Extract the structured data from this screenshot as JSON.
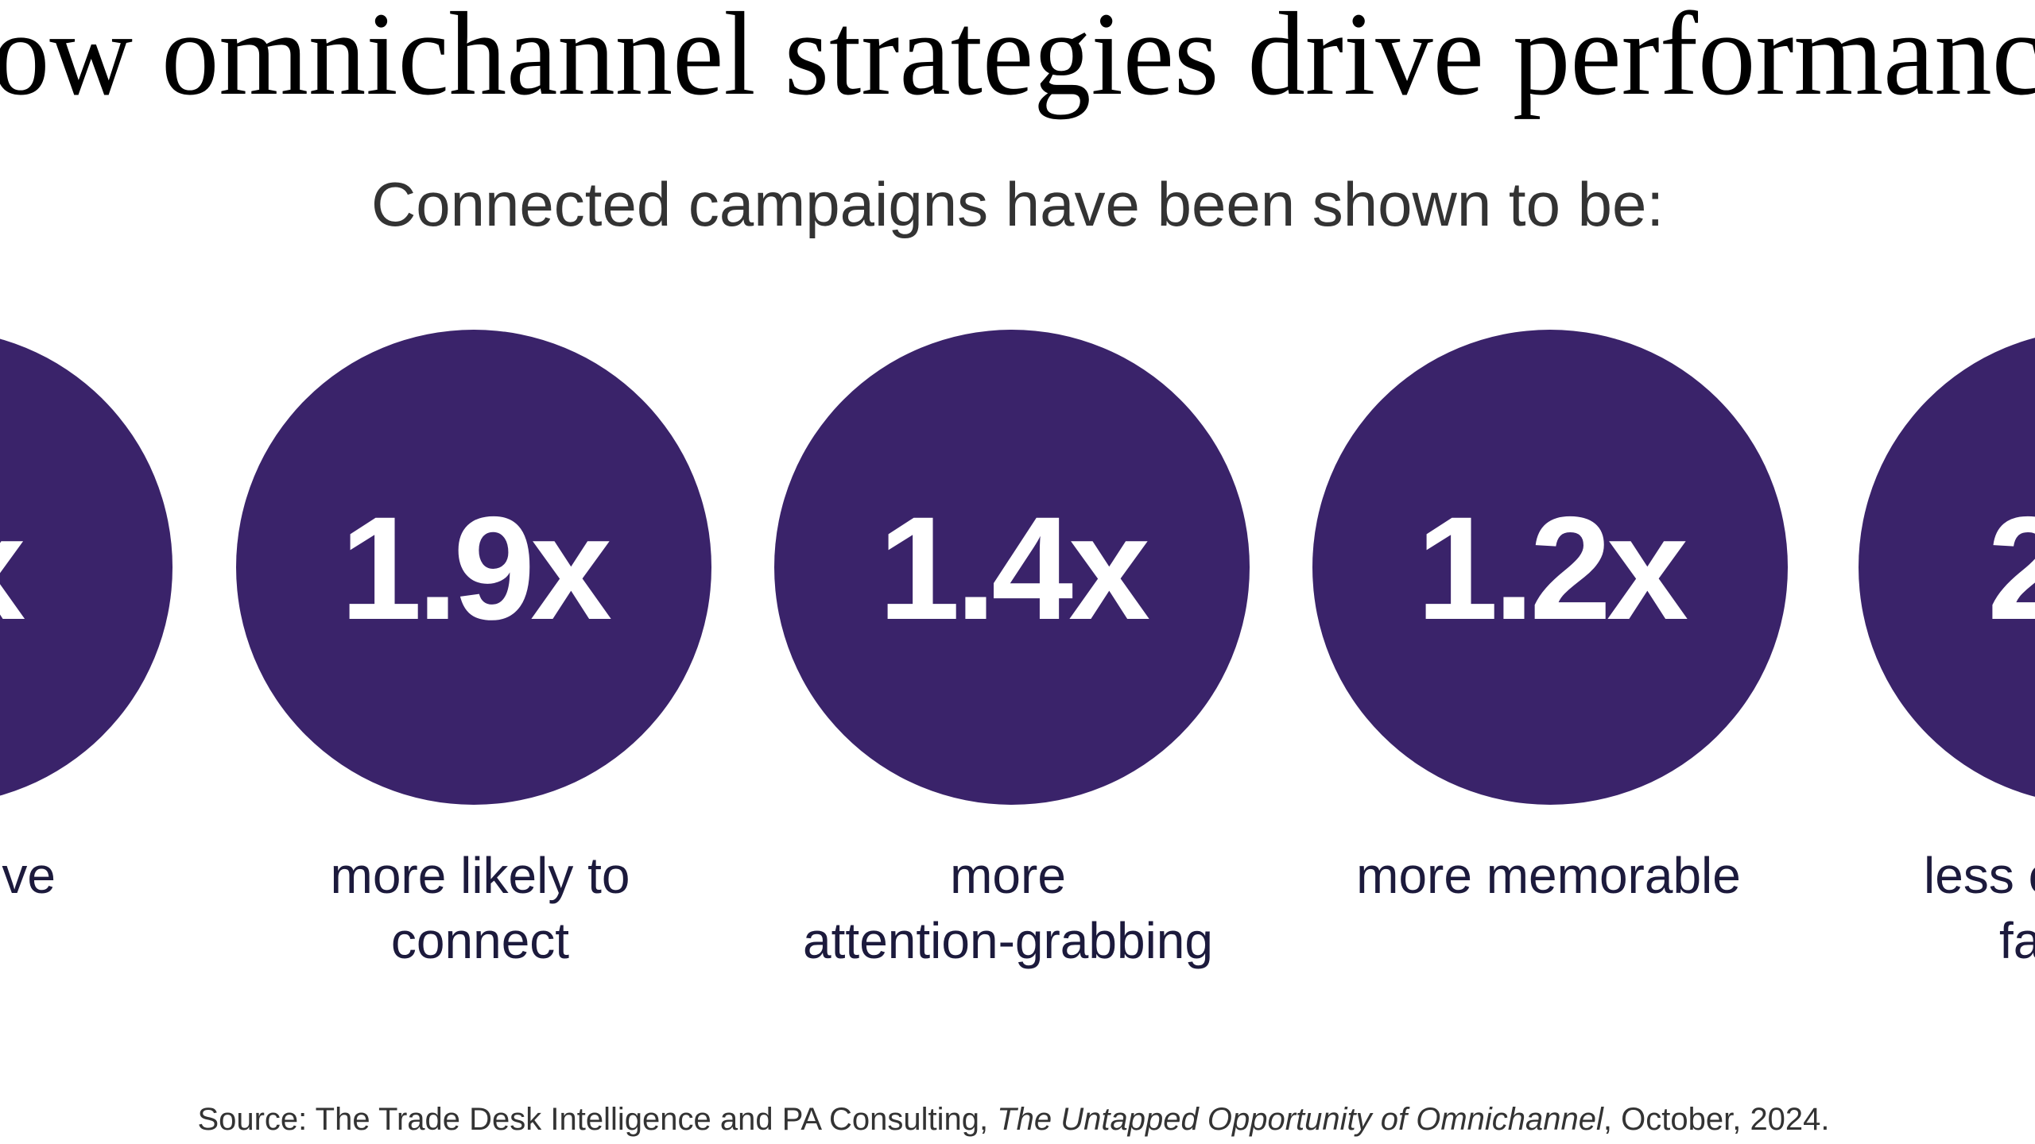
{
  "header": {
    "title": "ow omnichannel strategies drive performanc",
    "subtitle": "Connected campaigns have been shown to be:"
  },
  "stats": [
    {
      "value": "x",
      "label": [
        "ersive"
      ]
    },
    {
      "value": "1.9x",
      "label": [
        "more likely to",
        "connect"
      ]
    },
    {
      "value": "1.4x",
      "label": [
        "more",
        "attention-grabbing"
      ]
    },
    {
      "value": "1.2x",
      "label": [
        "more memorable"
      ]
    },
    {
      "value": "2",
      "label": [
        "less c",
        "fa"
      ]
    }
  ],
  "source": {
    "prefix": "Source: The Trade Desk Intelligence and PA Consulting, ",
    "title": "The Untapped Opportunity of Omnichannel",
    "suffix": ", October, 2024."
  }
}
